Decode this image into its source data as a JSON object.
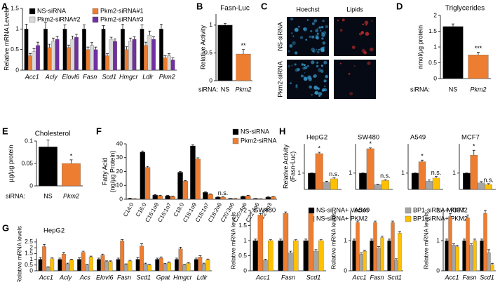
{
  "chart_data": [
    {
      "panel": "A",
      "type": "bar",
      "ylabel": "Relative mRNA Levels",
      "italic": true,
      "series": [
        {
          "name": "NS-siRNA",
          "color": "#000000"
        },
        {
          "name": "Pkm2-siRNA#1",
          "color": "#ed7d31"
        },
        {
          "name": "Pkm2-siRNA#2",
          "color": "#d9d9d9"
        },
        {
          "name": "Pkm2-siRNA#3",
          "color": "#7030a0"
        }
      ],
      "subplots": [
        {
          "categories": [
            "Acc1",
            "Acly",
            "Elovl6",
            "Fasn",
            "Scd1",
            "Hmgcr",
            "Ldlr",
            "Pkm2"
          ],
          "values": [
            [
              1,
              1,
              1,
              1,
              1,
              1,
              1,
              1
            ],
            [
              0.35,
              0.55,
              0.55,
              0.5,
              0.35,
              0.5,
              0.6,
              0.3
            ],
            [
              0.45,
              0.7,
              0.75,
              0.6,
              0.75,
              0.7,
              0.85,
              0.35
            ],
            [
              0.6,
              0.75,
              0.8,
              0.5,
              0.7,
              0.75,
              0.75,
              0.25
            ]
          ],
          "errors": [
            [
              0.12,
              0.15,
              0.1,
              0.1,
              0.08,
              0.12,
              0.1,
              0.12
            ],
            [
              0.05,
              0.08,
              0.06,
              0.06,
              0.05,
              0.07,
              0.08,
              0.05
            ],
            [
              0.07,
              0.08,
              0.08,
              0.07,
              0.05,
              0.08,
              0.1,
              0.05
            ],
            [
              0.08,
              0.07,
              0.07,
              0.06,
              0.06,
              0.06,
              0.06,
              0.05
            ]
          ],
          "ylim": [
            0,
            1.5
          ],
          "yticks": [
            0,
            0.5,
            1,
            1.5
          ]
        }
      ]
    },
    {
      "panel": "B",
      "type": "bar",
      "title": "Fasn-Luc",
      "ylabel": "Relative Activity",
      "category_prefix": "siRNA:",
      "italic": [
        false,
        true
      ],
      "colors": [
        "#000000",
        "#ed7d31"
      ],
      "subplots": [
        {
          "categories": [
            "NS",
            "Pkm2"
          ],
          "values": [
            [
              1,
              0.48
            ]
          ],
          "errors": [
            [
              0.03,
              0.08
            ]
          ],
          "annotations": [
            [
              null,
              "**"
            ]
          ],
          "ylim": [
            0,
            1.2
          ],
          "yticks": [
            0,
            0.5,
            1
          ]
        }
      ]
    },
    {
      "panel": "D",
      "type": "bar",
      "title": "Triglycerides",
      "ylabel": "nmol/µg protein",
      "category_prefix": "siRNA:",
      "italic": [
        false,
        true
      ],
      "colors": [
        "#000000",
        "#ed7d31"
      ],
      "subplots": [
        {
          "categories": [
            "NS",
            "Pkm2"
          ],
          "values": [
            [
              1.65,
              0.75
            ]
          ],
          "errors": [
            [
              0.08,
              0.08
            ]
          ],
          "annotations": [
            [
              null,
              "***"
            ]
          ],
          "ylim": [
            0,
            2
          ],
          "yticks": [
            0,
            0.5,
            1,
            1.5,
            2
          ]
        }
      ]
    },
    {
      "panel": "E",
      "type": "bar",
      "title": "Cholesterol",
      "ylabel": "µg/µg protein",
      "category_prefix": "siRNA:",
      "italic": [
        false,
        true
      ],
      "colors": [
        "#000000",
        "#ed7d31"
      ],
      "subplots": [
        {
          "categories": [
            "NS",
            "Pkm2"
          ],
          "values": [
            [
              0.087,
              0.05
            ]
          ],
          "errors": [
            [
              0.015,
              0.008
            ]
          ],
          "annotations": [
            [
              null,
              "*"
            ]
          ],
          "ylim": [
            0,
            0.1
          ],
          "yticks": [
            0,
            0.05,
            0.1
          ]
        }
      ]
    },
    {
      "panel": "F",
      "type": "bar",
      "ylabel": [
        "Fatty Acid",
        "(ng/µg Protein)"
      ],
      "italic": false,
      "series": [
        {
          "name": "NS-siRNA",
          "color": "#000000"
        },
        {
          "name": "Pkm2-siRNA",
          "color": "#ed7d31"
        }
      ],
      "subplots": [
        {
          "categories": [
            "C14:0",
            "C16:0",
            "C16:1n9",
            "C16:1n7",
            "C18:0",
            "C18:1n9",
            "C18:1n7",
            "C18:2n6",
            "C20:3n6",
            "C20:4n6",
            "C22:4n6",
            "C22:6n3"
          ],
          "values": [
            [
              0.5,
              34,
              3,
              2.5,
              19.5,
              38.5,
              5,
              1.5,
              0.5,
              2,
              0.5,
              1.5
            ],
            [
              0.3,
              23,
              2.5,
              2,
              13,
              29,
              3.5,
              1.5,
              0.5,
              2.5,
              0.3,
              1.8
            ]
          ],
          "errors": [
            [
              0.2,
              0.8,
              0.3,
              0.3,
              0.6,
              0.8,
              0.3,
              0.2,
              0.1,
              0.2,
              0.1,
              0.2
            ],
            [
              0.1,
              0.7,
              0.3,
              0.2,
              0.5,
              0.9,
              0.3,
              0.2,
              0.1,
              0.3,
              0.1,
              0.2
            ]
          ],
          "annotations": [
            [
              null,
              null,
              null,
              null,
              null,
              null,
              null,
              null,
              null,
              null,
              null,
              null
            ],
            [
              null,
              null,
              null,
              null,
              null,
              null,
              null,
              "n.s.",
              null,
              null,
              null,
              null
            ]
          ],
          "ylim": [
            0,
            40
          ],
          "yticks": [
            0,
            10,
            20,
            30,
            40
          ]
        }
      ]
    },
    {
      "panel": "H",
      "type": "bar",
      "ylabel": [
        "Relative Activity",
        "(Fasn-Luc)"
      ],
      "series": [
        {
          "name": "NS-siRNA+ Vector",
          "color": "#000000"
        },
        {
          "name": "NS-siRNA+ PKM2",
          "color": "#ed7d31"
        },
        {
          "name": "BP1-siRNA+ PKM2",
          "color": "#a5a5a5"
        },
        {
          "name": "BP1-siRNA+ PKM2",
          "color": "#ffc000"
        }
      ],
      "subplots": [
        {
          "title": "HepG2",
          "values": [
            [
              1
            ],
            [
              2.2
            ],
            [
              0.45
            ],
            [
              0.65
            ]
          ],
          "errors": [
            [
              0.02
            ],
            [
              0.08
            ],
            [
              0.05
            ],
            [
              0.06
            ]
          ],
          "annotations": [
            [
              null
            ],
            [
              "*"
            ],
            [
              null
            ],
            [
              "n.s."
            ]
          ],
          "ylim": [
            0,
            2.8
          ],
          "yticks": [
            1
          ]
        },
        {
          "title": "SW480",
          "values": [
            [
              1
            ],
            [
              2.5
            ],
            [
              0.3
            ],
            [
              0.55
            ]
          ],
          "errors": [
            [
              0.02
            ],
            [
              0.05
            ],
            [
              0.03
            ],
            [
              0.05
            ]
          ],
          "annotations": [
            [
              null
            ],
            [
              "*"
            ],
            [
              null
            ],
            [
              "n.s."
            ]
          ],
          "ylim": [
            0,
            2.8
          ],
          "yticks": [
            1
          ]
        },
        {
          "title": "A549",
          "values": [
            [
              1
            ],
            [
              1.7
            ],
            [
              0.5
            ],
            [
              0.7
            ]
          ],
          "errors": [
            [
              0.02
            ],
            [
              0.1
            ],
            [
              0.08
            ],
            [
              0.1
            ]
          ],
          "annotations": [
            [
              null
            ],
            [
              "*"
            ],
            [
              null
            ],
            [
              "n.s."
            ]
          ],
          "ylim": [
            0,
            2.8
          ],
          "yticks": [
            1
          ]
        },
        {
          "title": "MCF7",
          "values": [
            [
              1
            ],
            [
              2.1
            ],
            [
              0.4
            ],
            [
              0.3
            ]
          ],
          "errors": [
            [
              0.02
            ],
            [
              0.3
            ],
            [
              0.08
            ],
            [
              0.05
            ]
          ],
          "annotations": [
            [
              null
            ],
            [
              "*"
            ],
            [
              null
            ],
            [
              "n.s."
            ]
          ],
          "ylim": [
            0,
            2.8
          ],
          "yticks": [
            1
          ]
        }
      ]
    },
    {
      "panel": "G",
      "type": "bar",
      "italic": true,
      "colors": [
        "#000000",
        "#ed7d31",
        "#a5a5a5",
        "#ffc000"
      ],
      "subplots": [
        {
          "title": "HepG2",
          "ylabel": "Relative mRNA levels",
          "categories": [
            "Acc1",
            "Acly",
            "Acs",
            "Elovl6",
            "Fasn",
            "Scd1",
            "Gpat",
            "Hmgcr",
            "Ldlr"
          ],
          "values": [
            [
              1,
              1,
              1,
              1,
              1,
              1,
              1,
              1,
              1
            ],
            [
              2.1,
              1.45,
              1.6,
              1.35,
              2.6,
              2.15,
              1.1,
              1.9,
              1.2
            ],
            [
              0.3,
              0.6,
              0.5,
              0.8,
              0.55,
              0.6,
              0.6,
              0.5,
              0.6
            ],
            [
              1.05,
              0.95,
              1.2,
              0.8,
              0.85,
              0.5,
              0.7,
              0.65,
              0.95
            ]
          ],
          "errors": [
            [
              0.15,
              0.1,
              0.12,
              0.1,
              0.1,
              0.15,
              0.1,
              0.1,
              0.1
            ],
            [
              0.2,
              0.15,
              0.1,
              0.1,
              0.1,
              0.2,
              0.1,
              0.15,
              0.1
            ],
            [
              0.05,
              0.06,
              0.05,
              0.06,
              0.05,
              0.06,
              0.05,
              0.05,
              0.06
            ],
            [
              0.08,
              0.06,
              0.07,
              0.06,
              0.06,
              0.05,
              0.06,
              0.06,
              0.07
            ]
          ],
          "ylim": [
            0,
            2.8
          ],
          "yticks": [
            0,
            0.5,
            1,
            1.5,
            2,
            2.5
          ]
        },
        {
          "title": "SW480",
          "ylabel": "Relative mRNA levels",
          "categories": [
            "Acc1",
            "Fasn",
            "Scd1"
          ],
          "values": [
            [
              1,
              1,
              1
            ],
            [
              1.85,
              1.9,
              1.9
            ],
            [
              0.35,
              0.6,
              0.65
            ],
            [
              1,
              1,
              1
            ]
          ],
          "errors": [
            [
              0.05,
              0.05,
              0.05
            ],
            [
              0.05,
              0.05,
              0.05
            ],
            [
              0.03,
              0.05,
              0.05
            ],
            [
              0.03,
              0.03,
              0.03
            ]
          ],
          "ylim": [
            0,
            2
          ],
          "yticks": [
            0,
            0.5,
            1,
            1.5,
            2
          ]
        },
        {
          "title": "A549",
          "ylabel": "Relative mRNA levels",
          "categories": [
            "Acc1",
            "Fasn",
            "Scd1"
          ],
          "values": [
            [
              1,
              1,
              1
            ],
            [
              1.6,
              1.6,
              1.6
            ],
            [
              0.55,
              0.75,
              0.35
            ],
            [
              0.65,
              1.1,
              1.25
            ]
          ],
          "errors": [
            [
              0.05,
              0.05,
              0.05
            ],
            [
              0.05,
              0.05,
              0.05
            ],
            [
              0.05,
              0.05,
              0.05
            ],
            [
              0.03,
              0.05,
              0.05
            ]
          ],
          "ylim": [
            0,
            2
          ],
          "yticks": [
            0,
            1
          ]
        },
        {
          "title": "MCF7",
          "ylabel": "Relative mRNA levels",
          "categories": [
            "Acc1",
            "Fasn",
            "Scd1"
          ],
          "values": [
            [
              1,
              1,
              1
            ],
            [
              1.8,
              1.75,
              1.9
            ],
            [
              0.85,
              0.85,
              0.6
            ],
            [
              0.8,
              1,
              0.2
            ]
          ],
          "errors": [
            [
              0.05,
              0.05,
              0.05
            ],
            [
              0.1,
              0.1,
              0.1
            ],
            [
              0.05,
              0.05,
              0.1
            ],
            [
              0.05,
              0.05,
              0.05
            ]
          ],
          "ylim": [
            0,
            2
          ],
          "yticks": [
            0,
            1,
            2
          ]
        }
      ]
    }
  ],
  "image_panel": {
    "panel": "C",
    "columns": [
      "Hoechst",
      "Lipids"
    ],
    "rows": [
      "NS-siRNA",
      "Pkm2-siRNA"
    ]
  }
}
